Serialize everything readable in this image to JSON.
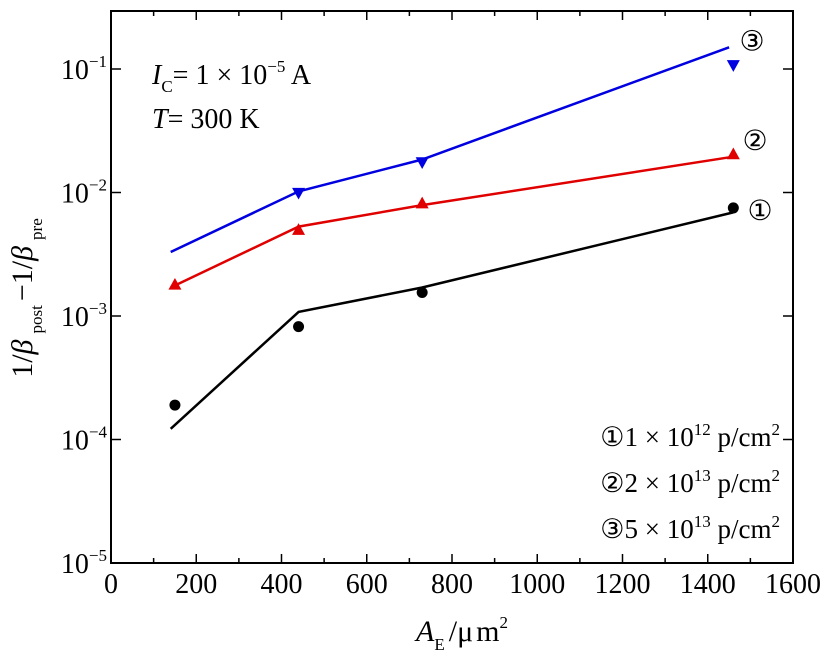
{
  "chart_data": {
    "type": "line",
    "xlabel": "A_E / μm²",
    "ylabel": "1/β_post − 1/β_pre",
    "xlabel_parts": {
      "var": "A",
      "sub": "E",
      "sep": "/",
      "mu": "μ",
      "m": "m",
      "pow": "2"
    },
    "ylabel_parts": {
      "a": "1/",
      "b1": "β",
      "s1": "post",
      "mid": "−1/",
      "b2": "β",
      "s2": "pre"
    },
    "xlim": [
      0,
      1600
    ],
    "ylim": [
      1e-05,
      0.3
    ],
    "yscale": "log",
    "x_ticks": [
      "0",
      "200",
      "400",
      "600",
      "800",
      "1000",
      "1200",
      "1400",
      "1600"
    ],
    "y_ticks": [
      {
        "base": "10",
        "exp": "−1",
        "value": 0.1
      },
      {
        "base": "10",
        "exp": "−2",
        "value": 0.01
      },
      {
        "base": "10",
        "exp": "−3",
        "value": 0.001
      },
      {
        "base": "10",
        "exp": "−4",
        "value": 0.0001
      },
      {
        "base": "10",
        "exp": "−5",
        "value": 1e-05
      }
    ],
    "annotation": {
      "ic": {
        "var": "I",
        "sub": "C",
        "text": "= 1 × 10",
        "exp": "−5",
        "unit": " A"
      },
      "t": {
        "var": "T",
        "text": "= 300 K"
      }
    },
    "series": [
      {
        "name": "1 × 10¹² p/cm²",
        "marker": "①",
        "legend": {
          "circ": "①",
          "mant": "1 × 10",
          "exp": "12",
          "unit": " p/cm",
          "pow": "2"
        },
        "color": "#000000",
        "shape": "circle",
        "points_x": [
          150,
          440,
          730,
          1460
        ],
        "points_y": [
          0.00019,
          0.00082,
          0.00155,
          0.0075
        ],
        "fit_x": [
          140,
          440,
          730,
          1460
        ],
        "fit_y": [
          0.000122,
          0.00108,
          0.0017,
          0.0069
        ]
      },
      {
        "name": "2 × 10¹³ p/cm²",
        "marker": "②",
        "legend": {
          "circ": "②",
          "mant": "2 × 10",
          "exp": "13",
          "unit": " p/cm",
          "pow": "2"
        },
        "color": "#e00000",
        "shape": "triangle-up",
        "points_x": [
          150,
          440,
          730,
          1460
        ],
        "points_y": [
          0.0018,
          0.005,
          0.0082,
          0.0205
        ],
        "fit_x": [
          140,
          440,
          730,
          1460
        ],
        "fit_y": [
          0.0017,
          0.0053,
          0.0079,
          0.0195
        ]
      },
      {
        "name": "5 × 10¹³ p/cm²",
        "marker": "③",
        "legend": {
          "circ": "③",
          "mant": "5 × 10",
          "exp": "13",
          "unit": " p/cm",
          "pow": "2"
        },
        "color": "#0000e0",
        "shape": "triangle-down",
        "points_x": [
          440,
          730,
          1460
        ],
        "points_y": [
          0.0099,
          0.0175,
          0.107
        ],
        "fit_x": [
          140,
          440,
          730,
          1450
        ],
        "fit_y": [
          0.0033,
          0.0102,
          0.0185,
          0.15
        ]
      }
    ]
  }
}
